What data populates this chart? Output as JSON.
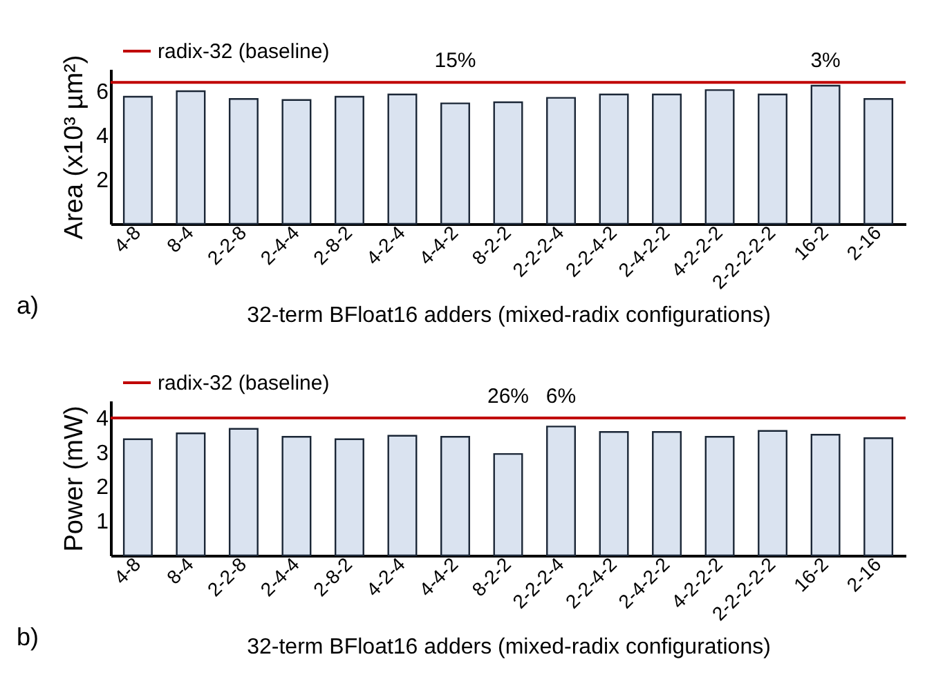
{
  "chart_data": [
    {
      "type": "bar",
      "xlabel": "32-term BFloat16 adders (mixed-radix configurations)",
      "ylabel": "Area (x10³ µm²)",
      "categories": [
        "4-8",
        "8-4",
        "2-2-8",
        "2-4-4",
        "2-8-2",
        "4-2-4",
        "4-4-2",
        "8-2-2",
        "2-2-2-4",
        "2-2-4-2",
        "2-4-2-2",
        "4-2-2-2",
        "2-2-2-2-2",
        "16-2",
        "2-16"
      ],
      "values": [
        5.75,
        6.0,
        5.65,
        5.6,
        5.75,
        5.85,
        5.45,
        5.5,
        5.7,
        5.85,
        5.85,
        6.05,
        5.85,
        6.25,
        5.65
      ],
      "color": "#dae3f0",
      "ylim": [
        0,
        7
      ],
      "yticks": [
        2,
        4,
        6
      ],
      "grid": false,
      "legend": "top left",
      "ref_lines": [
        {
          "axis": "y",
          "value": 6.4,
          "label": "radix-32 (baseline)",
          "color": "#c00000"
        }
      ],
      "annotations": [
        "a)",
        {
          "text": "15%",
          "x": "4-4-2",
          "y": 6.4
        },
        {
          "text": "3%",
          "x": "16-2",
          "y": 6.4
        }
      ]
    },
    {
      "type": "bar",
      "xlabel": "32-term BFloat16 adders (mixed-radix configurations)",
      "ylabel": "Power (mW)",
      "categories": [
        "4-8",
        "8-4",
        "2-2-8",
        "2-4-4",
        "2-8-2",
        "4-2-4",
        "4-4-2",
        "8-2-2",
        "2-2-2-4",
        "2-2-4-2",
        "2-4-2-2",
        "4-2-2-2",
        "2-2-2-2-2",
        "16-2",
        "2-16"
      ],
      "values": [
        3.38,
        3.55,
        3.68,
        3.45,
        3.38,
        3.48,
        3.45,
        2.95,
        3.75,
        3.59,
        3.59,
        3.45,
        3.62,
        3.51,
        3.41
      ],
      "color": "#dae3f0",
      "ylim": [
        0,
        4.5
      ],
      "yticks": [
        1,
        2,
        3,
        4
      ],
      "grid": false,
      "legend": "top left",
      "ref_lines": [
        {
          "axis": "y",
          "value": 4,
          "label": "radix-32 (baseline)",
          "color": "#c00000"
        }
      ],
      "annotations": [
        "b)",
        {
          "text": "26%",
          "x": "8-2-2",
          "y": 4
        },
        {
          "text": "6%",
          "x": "2-2-2-4",
          "y": 4
        }
      ]
    }
  ]
}
